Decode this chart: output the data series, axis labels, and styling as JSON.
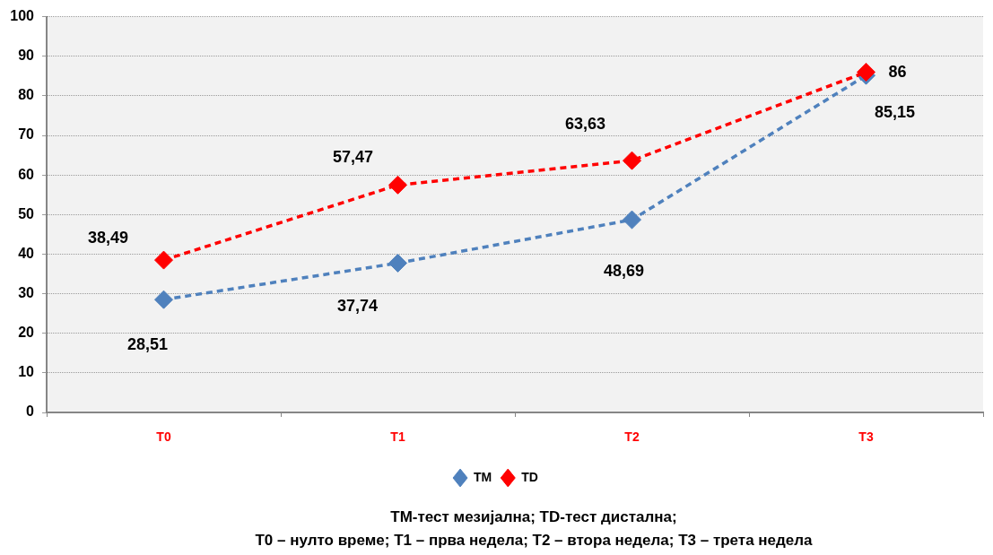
{
  "chart_data": {
    "type": "line",
    "categories": [
      "T0",
      "T1",
      "T2",
      "T3"
    ],
    "series": [
      {
        "name": "TM",
        "color": "#4f81bd",
        "values": [
          28.51,
          37.74,
          48.69,
          85.15
        ],
        "value_labels": [
          "28,51",
          "37,74",
          "48,69",
          "85,15"
        ]
      },
      {
        "name": "TD",
        "color": "#ff0000",
        "values": [
          38.49,
          57.47,
          63.63,
          86
        ],
        "value_labels": [
          "38,49",
          "57,47",
          "63,63",
          "86"
        ]
      }
    ],
    "ylim": [
      0,
      100
    ],
    "yticks": [
      0,
      10,
      20,
      30,
      40,
      50,
      60,
      70,
      80,
      90,
      100
    ],
    "grid": "y",
    "legend": "bottom",
    "marker": "diamond",
    "line_style": "dashed",
    "annotations": [
      "ТМ-тест мезијална; ТD-тест дистална;",
      "Т0 – нулто време; Т1 – прва недела; Т2 – втора недела; Т3 – трета недела"
    ]
  }
}
